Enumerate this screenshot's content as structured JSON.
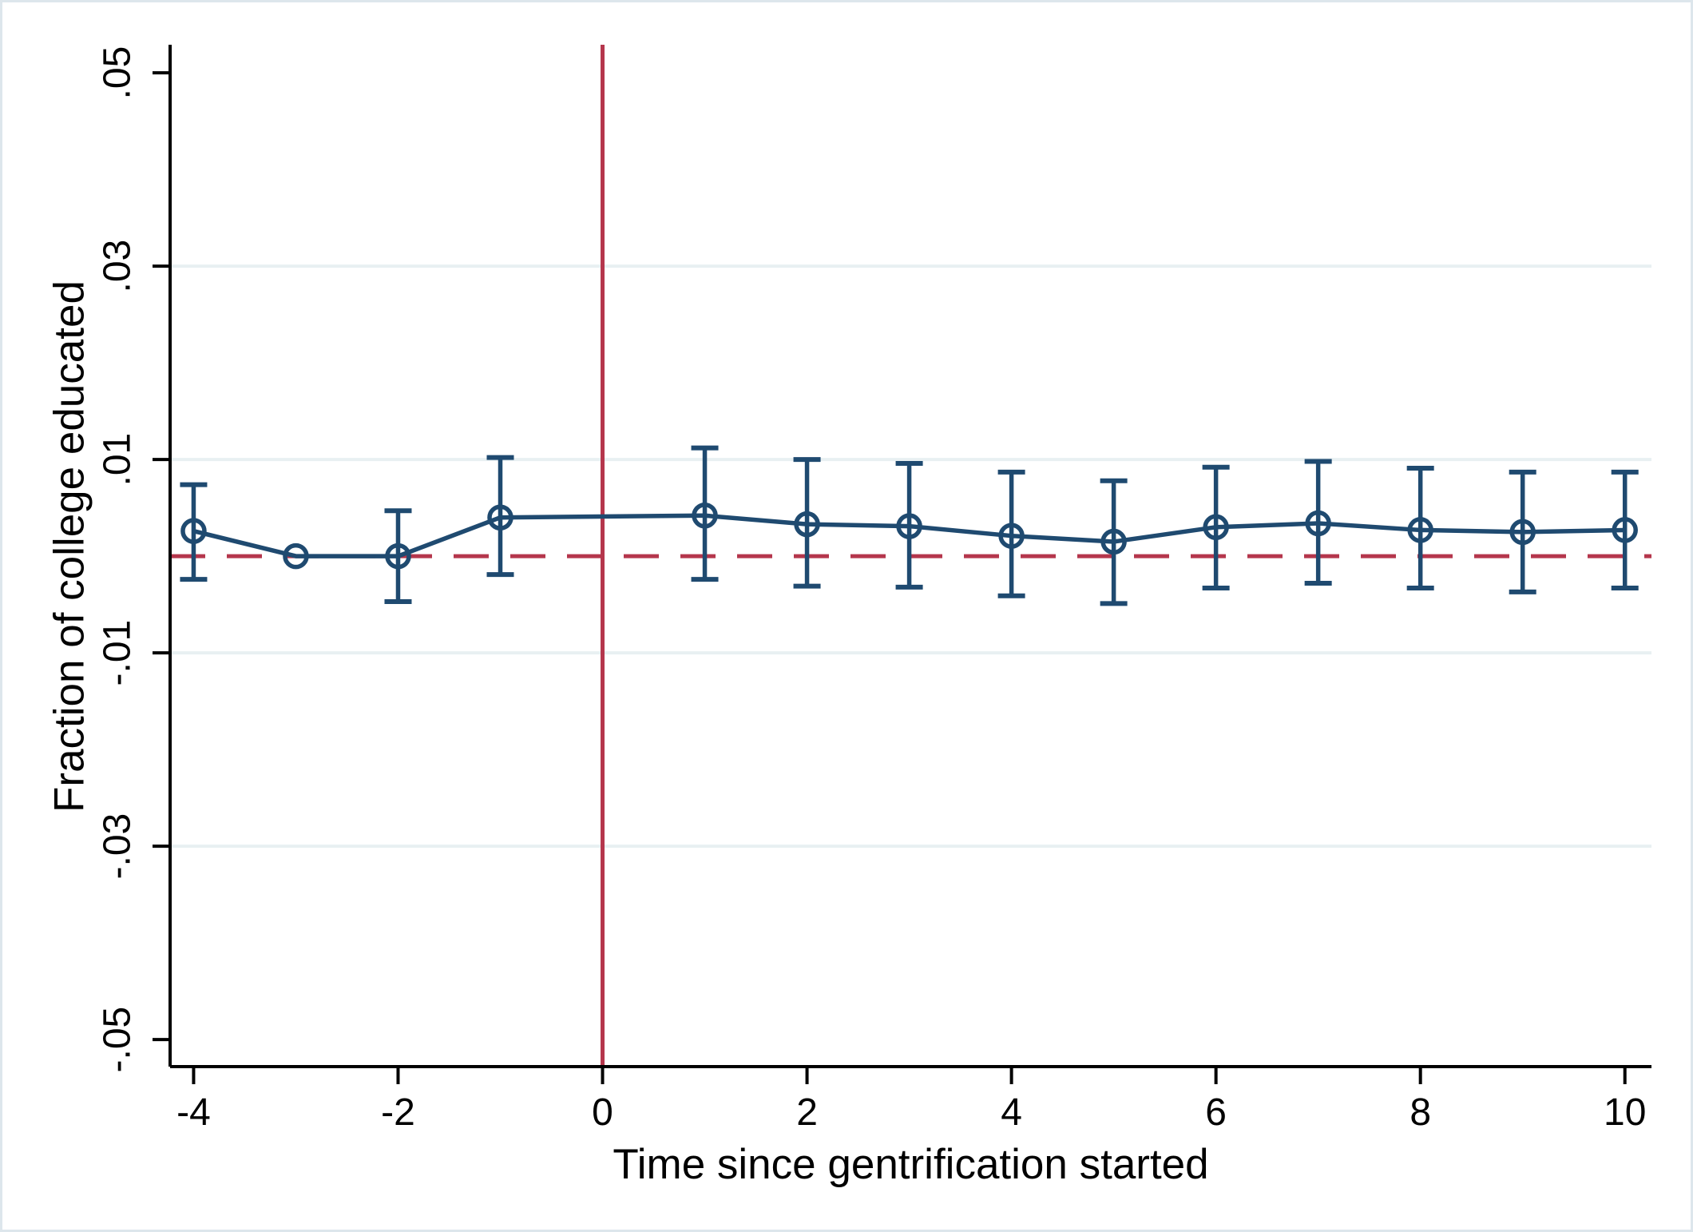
{
  "chart_data": {
    "type": "line",
    "title": "",
    "xlabel": "Time since gentrification started",
    "ylabel": "Fraction of college educated",
    "legend": "none",
    "grid": "horizontal-only",
    "x": [
      -4,
      -3,
      -2,
      -1,
      1,
      2,
      3,
      4,
      5,
      6,
      7,
      8,
      9,
      10
    ],
    "estimates": [
      0.0026,
      0.0,
      0.0,
      0.004,
      0.0042,
      0.0033,
      0.0031,
      0.0021,
      0.0015,
      0.003,
      0.0034,
      0.0027,
      0.0025,
      0.0027
    ],
    "ci_low": [
      -0.0024,
      null,
      -0.0047,
      -0.0019,
      -0.0024,
      -0.0031,
      -0.0032,
      -0.0041,
      -0.0049,
      -0.0033,
      -0.0028,
      -0.0033,
      -0.0037,
      -0.0033
    ],
    "ci_high": [
      0.0074,
      null,
      0.0047,
      0.0102,
      0.0112,
      0.01,
      0.0096,
      0.0087,
      0.0078,
      0.0092,
      0.0098,
      0.0091,
      0.0087,
      0.0087
    ],
    "reference_period": -3,
    "event_line_x": 0,
    "zero_line_y": 0,
    "xlim": [
      -4.23,
      10.26
    ],
    "ylim": [
      -0.0528,
      0.0529
    ],
    "x_ticks": {
      "values": [
        -4,
        -2,
        0,
        2,
        4,
        6,
        8,
        10
      ],
      "labels": [
        "-4",
        "-2",
        "0",
        "2",
        "4",
        "6",
        "8",
        "10"
      ]
    },
    "y_ticks": {
      "values": [
        0.05,
        0.03,
        0.01,
        -0.01,
        -0.03,
        -0.05
      ],
      "labels": [
        ".05",
        ".03",
        ".01",
        "-.01",
        "-.03",
        "-.05"
      ]
    },
    "grid_y_values": [
      0.03,
      0.01,
      -0.01,
      -0.03
    ],
    "colors": {
      "series": "#1f4a70",
      "reference_lines": "#b5364c",
      "gridline": "#e8f0f2",
      "axis": "#000000",
      "background": "#ffffff",
      "frame": "#dde6ec"
    }
  }
}
